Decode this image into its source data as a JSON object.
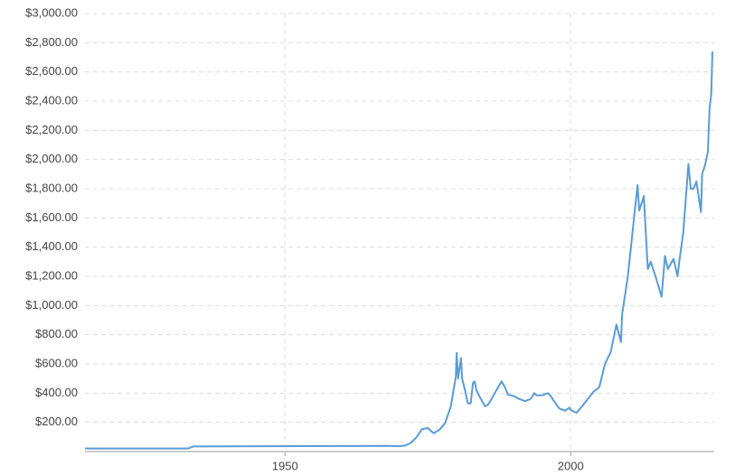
{
  "chart_data": {
    "type": "line",
    "x": [
      1915,
      1933,
      1934,
      1968,
      1970,
      1971,
      1972,
      1973,
      1974,
      1975,
      1976,
      1977,
      1978,
      1979,
      1979.9,
      1980.05,
      1980.3,
      1980.8,
      1981,
      1981.5,
      1982,
      1982.5,
      1982.9,
      1983.2,
      1983.5,
      1984,
      1985,
      1985.5,
      1986,
      1987,
      1987.9,
      1988.5,
      1989,
      1990,
      1991,
      1992,
      1993,
      1993.6,
      1994,
      1995,
      1996,
      1996.5,
      1997,
      1998,
      1999,
      1999.8,
      2000,
      2001,
      2002,
      2003,
      2004,
      2005,
      2006,
      2007,
      2008,
      2008.8,
      2009,
      2010,
      2011,
      2011.7,
      2012,
      2012.8,
      2013,
      2013.5,
      2014,
      2015,
      2015.9,
      2016.5,
      2017,
      2018,
      2018.7,
      2019,
      2019.7,
      2020.6,
      2021,
      2021.5,
      2022,
      2022.8,
      2023,
      2023.5,
      2024,
      2024.3,
      2024.6,
      2024.8
    ],
    "series": [
      {
        "color": "#5b9bd5",
        "values": [
          20.6,
          20.6,
          35,
          39,
          36,
          41,
          58,
          97,
          154,
          161,
          125,
          148,
          193,
          306,
          512,
          675,
          500,
          640,
          500,
          420,
          330,
          330,
          470,
          480,
          420,
          380,
          310,
          320,
          350,
          420,
          480,
          440,
          390,
          380,
          360,
          345,
          360,
          400,
          385,
          385,
          400,
          380,
          350,
          295,
          280,
          300,
          285,
          265,
          310,
          360,
          410,
          440,
          600,
          680,
          870,
          750,
          940,
          1200,
          1570,
          1825,
          1650,
          1750,
          1600,
          1250,
          1300,
          1180,
          1060,
          1340,
          1250,
          1320,
          1200,
          1300,
          1500,
          1970,
          1800,
          1800,
          1850,
          1640,
          1900,
          1960,
          2050,
          2350,
          2450,
          2740
        ]
      }
    ],
    "xlim": [
      1915,
      2024.8
    ],
    "xticks": [
      1950,
      2000
    ],
    "ylim": [
      0,
      3000
    ],
    "yticks": [
      {
        "value": 200,
        "label": "$200.00"
      },
      {
        "value": 400,
        "label": "$400.00"
      },
      {
        "value": 600,
        "label": "$600.00"
      },
      {
        "value": 800,
        "label": "$800.00"
      },
      {
        "value": 1000,
        "label": "$1,000.00"
      },
      {
        "value": 1200,
        "label": "$1,200.00"
      },
      {
        "value": 1400,
        "label": "$1,400.00"
      },
      {
        "value": 1600,
        "label": "$1,600.00"
      },
      {
        "value": 1800,
        "label": "$1,800.00"
      },
      {
        "value": 2000,
        "label": "$2,000.00"
      },
      {
        "value": 2200,
        "label": "$2,200.00"
      },
      {
        "value": 2400,
        "label": "$2,400.00"
      },
      {
        "value": 2600,
        "label": "$2,600.00"
      },
      {
        "value": 2800,
        "label": "$2,800.00"
      },
      {
        "value": 3000,
        "label": "$3,000.00"
      }
    ],
    "grid": true
  }
}
